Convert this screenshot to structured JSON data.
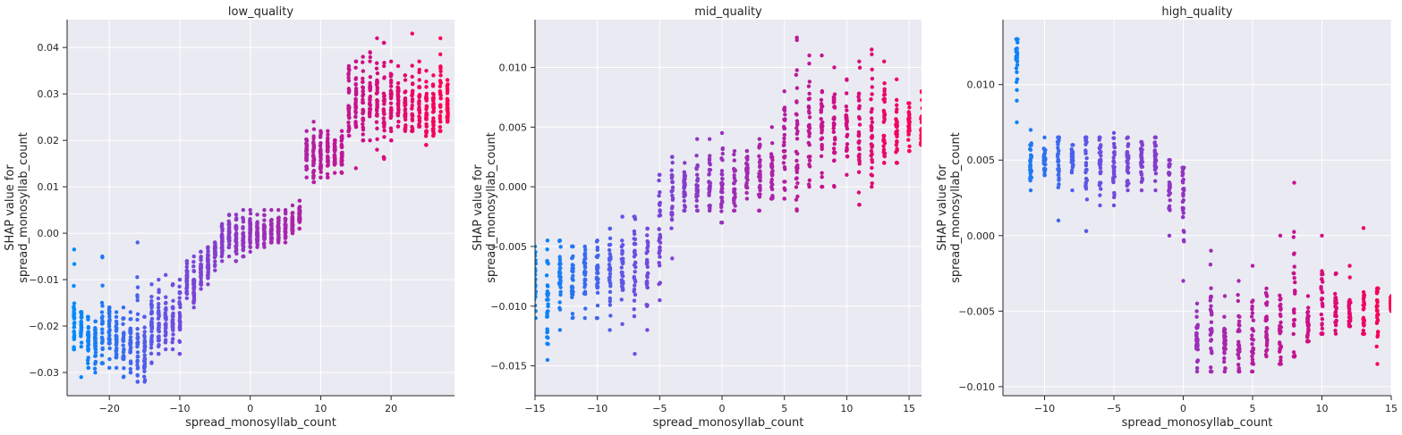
{
  "chart_data": [
    {
      "type": "scatter",
      "title": "low_quality",
      "xlabel": "spread_monosyllab_count",
      "ylabel": [
        "SHAP value for",
        "spread_monosyllab_count"
      ],
      "xlim": [
        -26,
        29
      ],
      "ylim": [
        -0.035,
        0.046
      ],
      "xticks": [
        -20,
        -10,
        0,
        10,
        20
      ],
      "yticks": [
        -0.03,
        -0.02,
        -0.01,
        0.0,
        0.01,
        0.02,
        0.03,
        0.04
      ],
      "ytick_labels": [
        "−0.03",
        "−0.02",
        "−0.01",
        "0.00",
        "0.01",
        "0.02",
        "0.03",
        "0.04"
      ],
      "xtick_labels": [
        "−20",
        "−10",
        "0",
        "10",
        "20"
      ],
      "grid": true,
      "color_scale": [
        "#008bfb",
        "#6b4fe3",
        "#9b2fb8",
        "#c5138f",
        "#ff0052"
      ],
      "xmin": -25,
      "xmax": 28,
      "points": [
        [
          -25,
          -0.018,
          -0.025,
          -0.0035
        ],
        [
          -24,
          -0.02,
          -0.031,
          -0.017
        ],
        [
          -23,
          -0.023,
          -0.029,
          -0.018
        ],
        [
          -22,
          -0.024,
          -0.03,
          -0.019
        ],
        [
          -21,
          -0.022,
          -0.028,
          -0.005
        ],
        [
          -20,
          -0.021,
          -0.029,
          -0.016
        ],
        [
          -19,
          -0.023,
          -0.029,
          -0.017
        ],
        [
          -18,
          -0.024,
          -0.031,
          -0.016
        ],
        [
          -17,
          -0.025,
          -0.03,
          -0.017
        ],
        [
          -16,
          -0.024,
          -0.032,
          -0.002
        ],
        [
          -15,
          -0.025,
          -0.032,
          -0.018
        ],
        [
          -14,
          -0.02,
          -0.028,
          -0.011
        ],
        [
          -13,
          -0.019,
          -0.026,
          -0.01
        ],
        [
          -12,
          -0.019,
          -0.025,
          -0.009
        ],
        [
          -11,
          -0.019,
          -0.025,
          -0.011
        ],
        [
          -10,
          -0.018,
          -0.026,
          -0.01
        ],
        [
          -9,
          -0.01,
          -0.014,
          -0.006
        ],
        [
          -8,
          -0.012,
          -0.016,
          -0.005
        ],
        [
          -7,
          -0.008,
          -0.012,
          -0.004
        ],
        [
          -6,
          -0.007,
          -0.011,
          -0.003
        ],
        [
          -5,
          -0.004,
          -0.008,
          -0.002
        ],
        [
          -4,
          -0.002,
          -0.006,
          0.002
        ],
        [
          -3,
          0.0,
          -0.005,
          0.004
        ],
        [
          -2,
          -0.001,
          -0.006,
          0.004
        ],
        [
          -1,
          -0.001,
          -0.005,
          0.005
        ],
        [
          0,
          0.0,
          -0.004,
          0.005
        ],
        [
          1,
          0.0,
          -0.003,
          0.004
        ],
        [
          2,
          0.0,
          -0.003,
          0.005
        ],
        [
          3,
          0.0,
          -0.002,
          0.005
        ],
        [
          4,
          0.001,
          -0.002,
          0.005
        ],
        [
          5,
          0.001,
          -0.002,
          0.005
        ],
        [
          6,
          0.002,
          0.0,
          0.006
        ],
        [
          7,
          0.004,
          0.001,
          0.007
        ],
        [
          8,
          0.017,
          0.012,
          0.022
        ],
        [
          9,
          0.016,
          0.011,
          0.024
        ],
        [
          10,
          0.017,
          0.012,
          0.022
        ],
        [
          11,
          0.017,
          0.012,
          0.022
        ],
        [
          12,
          0.017,
          0.013,
          0.02
        ],
        [
          13,
          0.017,
          0.013,
          0.022
        ],
        [
          14,
          0.028,
          0.021,
          0.036
        ],
        [
          15,
          0.029,
          0.014,
          0.037
        ],
        [
          16,
          0.028,
          0.02,
          0.038
        ],
        [
          17,
          0.029,
          0.02,
          0.039
        ],
        [
          18,
          0.029,
          0.018,
          0.042
        ],
        [
          19,
          0.029,
          0.016,
          0.041
        ],
        [
          20,
          0.027,
          0.02,
          0.037
        ],
        [
          21,
          0.028,
          0.023,
          0.036
        ],
        [
          22,
          0.027,
          0.022,
          0.034
        ],
        [
          23,
          0.027,
          0.022,
          0.043
        ],
        [
          24,
          0.028,
          0.023,
          0.037
        ],
        [
          25,
          0.026,
          0.019,
          0.035
        ],
        [
          26,
          0.027,
          0.021,
          0.034
        ],
        [
          27,
          0.027,
          0.022,
          0.042
        ],
        [
          28,
          0.027,
          0.024,
          0.033
        ]
      ]
    },
    {
      "type": "scatter",
      "title": "mid_quality",
      "xlabel": "spread_monosyllab_count",
      "ylabel": [
        "SHAP value for",
        "spread_monosyllab_count"
      ],
      "xlim": [
        -15,
        16
      ],
      "ylim": [
        -0.0175,
        0.014
      ],
      "xticks": [
        -15,
        -10,
        -5,
        0,
        5,
        10,
        15
      ],
      "yticks": [
        -0.015,
        -0.01,
        -0.005,
        0.0,
        0.005,
        0.01
      ],
      "ytick_labels": [
        "−0.015",
        "−0.010",
        "−0.005",
        "0.000",
        "0.005",
        "0.010"
      ],
      "xtick_labels": [
        "−15",
        "−10",
        "−5",
        "0",
        "5",
        "10",
        "15"
      ],
      "grid": true,
      "color_scale": [
        "#008bfb",
        "#6b4fe3",
        "#9b2fb8",
        "#c5138f",
        "#ff0052"
      ],
      "xmin": -15,
      "xmax": 16,
      "points": [
        [
          -15,
          -0.008,
          -0.011,
          -0.005
        ],
        [
          -14,
          -0.009,
          -0.0145,
          -0.0045
        ],
        [
          -13,
          -0.008,
          -0.012,
          -0.0045
        ],
        [
          -12,
          -0.008,
          -0.011,
          -0.005
        ],
        [
          -11,
          -0.007,
          -0.011,
          -0.005
        ],
        [
          -10,
          -0.007,
          -0.011,
          -0.0045
        ],
        [
          -9,
          -0.007,
          -0.012,
          -0.0035
        ],
        [
          -8,
          -0.007,
          -0.0115,
          -0.0025
        ],
        [
          -7,
          -0.007,
          -0.014,
          -0.0025
        ],
        [
          -6,
          -0.007,
          -0.012,
          -0.0035
        ],
        [
          -5,
          -0.003,
          -0.0095,
          0.001
        ],
        [
          -4,
          -0.001,
          -0.006,
          0.0025
        ],
        [
          -3,
          0.0,
          -0.002,
          0.002
        ],
        [
          -2,
          0.0,
          -0.002,
          0.004
        ],
        [
          -1,
          0.0,
          -0.002,
          0.004
        ],
        [
          0,
          0.0,
          -0.003,
          0.0045
        ],
        [
          1,
          0.0,
          -0.002,
          0.003
        ],
        [
          2,
          0.001,
          -0.001,
          0.003
        ],
        [
          3,
          0.001,
          -0.002,
          0.004
        ],
        [
          4,
          0.001,
          -0.001,
          0.005
        ],
        [
          5,
          0.003,
          -0.001,
          0.008
        ],
        [
          6,
          0.004,
          -0.002,
          0.0125
        ],
        [
          7,
          0.005,
          0.0,
          0.011
        ],
        [
          8,
          0.005,
          0.0,
          0.011
        ],
        [
          9,
          0.005,
          0.0,
          0.01
        ],
        [
          10,
          0.005,
          0.001,
          0.009
        ],
        [
          11,
          0.005,
          -0.0015,
          0.0105
        ],
        [
          12,
          0.005,
          0.0,
          0.0115
        ],
        [
          13,
          0.005,
          0.002,
          0.0105
        ],
        [
          14,
          0.005,
          0.002,
          0.009
        ],
        [
          15,
          0.005,
          0.003,
          0.007
        ],
        [
          16,
          0.005,
          0.0035,
          0.008
        ]
      ]
    },
    {
      "type": "scatter",
      "title": "high_quality",
      "xlabel": "spread_monosyllab_count",
      "ylabel": [
        "SHAP value for",
        "spread_monosyllab_count"
      ],
      "xlim": [
        -13,
        15
      ],
      "ylim": [
        -0.0106,
        0.0143
      ],
      "xticks": [
        -10,
        -5,
        0,
        5,
        10,
        15
      ],
      "yticks": [
        -0.01,
        -0.005,
        0.0,
        0.005,
        0.01
      ],
      "ytick_labels": [
        "−0.010",
        "−0.005",
        "0.000",
        "0.005",
        "0.010"
      ],
      "xtick_labels": [
        "−10",
        "−5",
        "0",
        "5",
        "10",
        "15"
      ],
      "grid": true,
      "color_scale": [
        "#008bfb",
        "#6b4fe3",
        "#9b2fb8",
        "#c5138f",
        "#ff0052"
      ],
      "xmin": -13,
      "xmax": 15,
      "points": [
        [
          -12,
          0.012,
          0.0075,
          0.013
        ],
        [
          -11,
          0.005,
          0.003,
          0.007
        ],
        [
          -10,
          0.005,
          0.004,
          0.0065
        ],
        [
          -9,
          0.005,
          0.001,
          0.0065
        ],
        [
          -8,
          0.005,
          0.003,
          0.006
        ],
        [
          -7,
          0.005,
          0.0003,
          0.0065
        ],
        [
          -6,
          0.005,
          0.002,
          0.0065
        ],
        [
          -5,
          0.005,
          0.002,
          0.0068
        ],
        [
          -4,
          0.005,
          0.003,
          0.0065
        ],
        [
          -3,
          0.005,
          0.003,
          0.0062
        ],
        [
          -2,
          0.005,
          0.003,
          0.0065
        ],
        [
          -1,
          0.004,
          0.0,
          0.005
        ],
        [
          0,
          0.003,
          -0.003,
          0.0045
        ],
        [
          1,
          -0.007,
          -0.009,
          -0.0045
        ],
        [
          2,
          -0.007,
          -0.009,
          -0.001
        ],
        [
          3,
          -0.0068,
          -0.009,
          -0.004
        ],
        [
          4,
          -0.007,
          -0.009,
          -0.003
        ],
        [
          5,
          -0.007,
          -0.009,
          -0.002
        ],
        [
          6,
          -0.006,
          -0.008,
          -0.0035
        ],
        [
          7,
          -0.006,
          -0.0085,
          0.0
        ],
        [
          8,
          -0.005,
          -0.008,
          0.0035
        ],
        [
          9,
          -0.006,
          -0.007,
          -0.004
        ],
        [
          10,
          -0.005,
          -0.0065,
          0.0
        ],
        [
          11,
          -0.005,
          -0.0065,
          -0.0025
        ],
        [
          12,
          -0.005,
          -0.006,
          -0.002
        ],
        [
          13,
          -0.006,
          -0.0065,
          0.0005
        ],
        [
          14,
          -0.005,
          -0.0085,
          -0.0035
        ],
        [
          15,
          -0.0045,
          -0.005,
          -0.004
        ]
      ]
    }
  ]
}
